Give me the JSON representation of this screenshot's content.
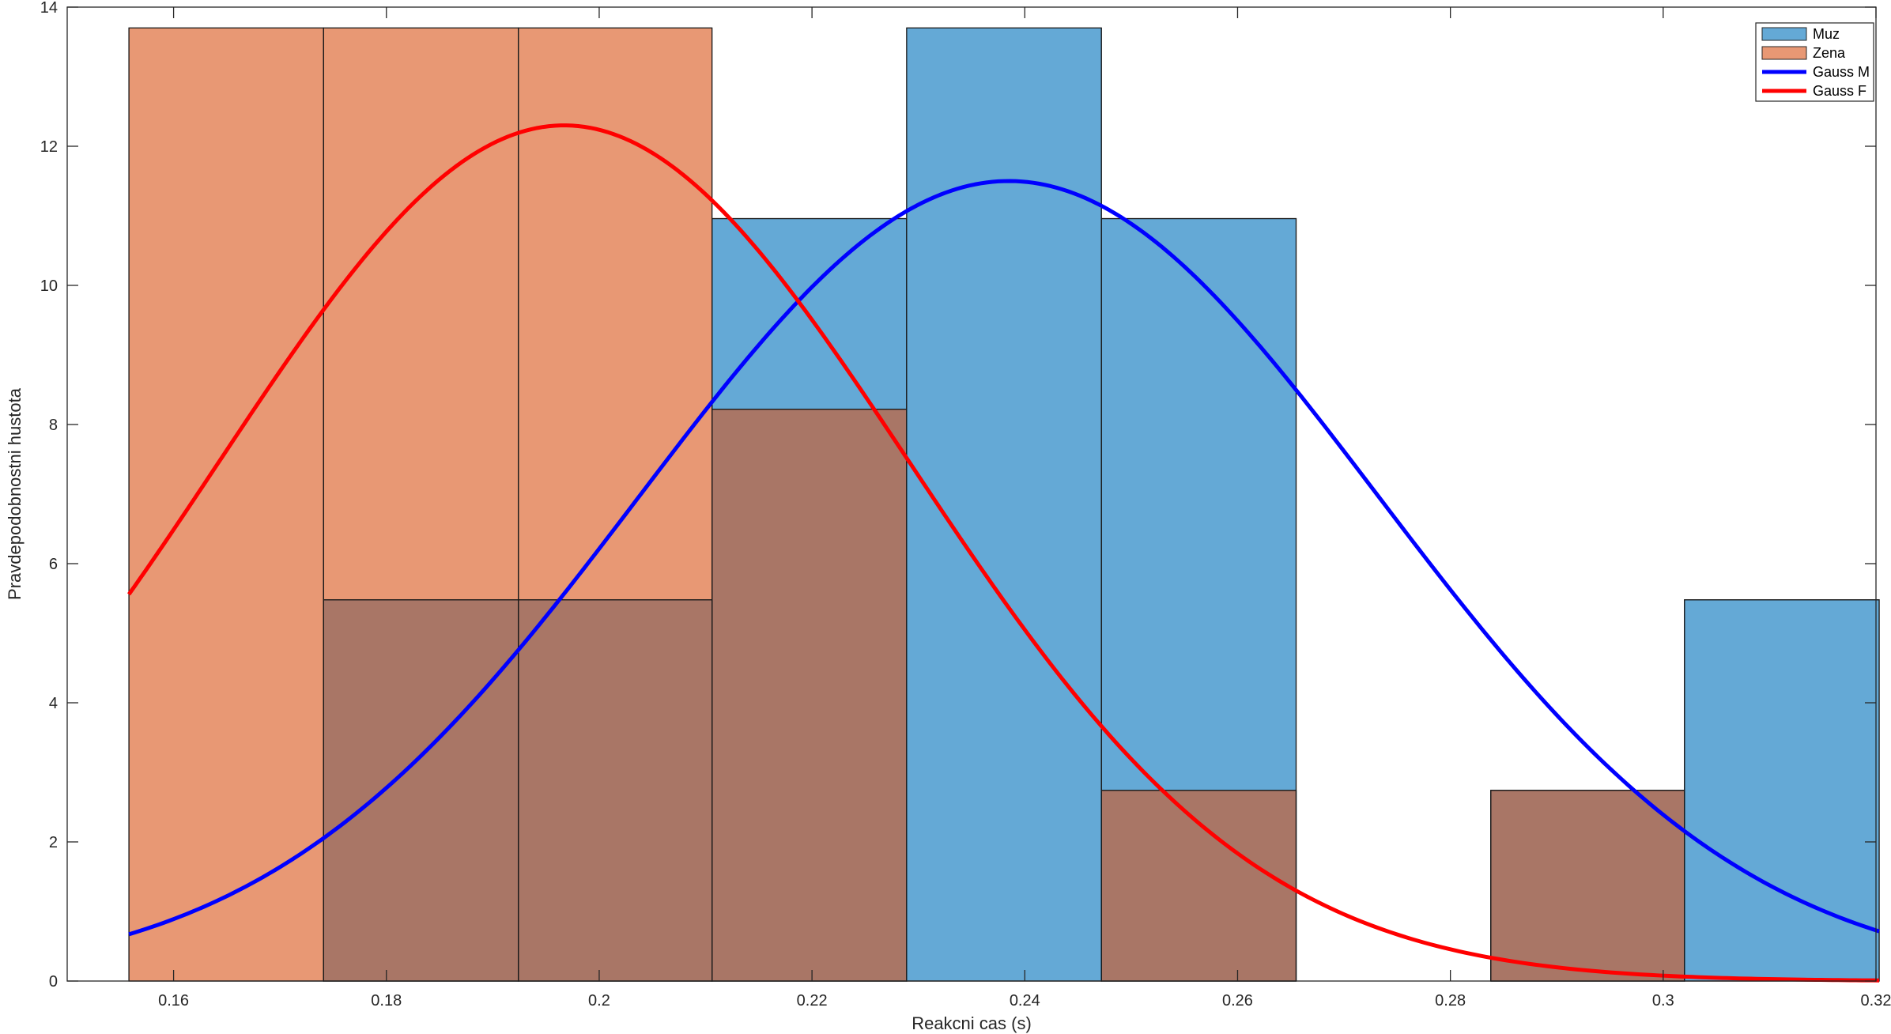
{
  "chart_data": {
    "type": "bar",
    "xlabel": "Reakcni cas (s)",
    "ylabel": "Pravdepodobnostni hustota",
    "xlim": [
      0.15,
      0.32
    ],
    "ylim": [
      0,
      14
    ],
    "x_ticks": [
      0.16,
      0.18,
      0.2,
      0.22,
      0.24,
      0.26,
      0.28,
      0.3,
      0.32
    ],
    "x_tick_labels": [
      "0.16",
      "0.18",
      "0.2",
      "0.22",
      "0.24",
      "0.26",
      "0.28",
      "0.3",
      "0.32"
    ],
    "y_ticks": [
      0,
      2,
      4,
      6,
      8,
      10,
      12,
      14
    ],
    "y_tick_labels": [
      "0",
      "2",
      "4",
      "6",
      "8",
      "10",
      "12",
      "14"
    ],
    "bin_edges": [
      0.1558,
      0.1741,
      0.1924,
      0.2106,
      0.2289,
      0.2472,
      0.2655,
      0.2838,
      0.302,
      0.3203
    ],
    "histograms": [
      {
        "name": "Muz",
        "color": "#0072BD",
        "face_color": "#64A9D6",
        "values": [
          0,
          5.48,
          5.48,
          10.96,
          13.7,
          10.96,
          0,
          2.74,
          5.48
        ]
      },
      {
        "name": "Zena",
        "color": "#D95319",
        "face_color": "#E89874",
        "values": [
          13.7,
          13.7,
          13.7,
          8.22,
          0,
          2.74,
          0,
          2.74,
          0
        ]
      }
    ],
    "overlap_color": "#A97666",
    "curves": [
      {
        "name": "Gauss M",
        "color": "#0000FF",
        "mean": 0.2385,
        "sigma": 0.0347,
        "peak": 11.5
      },
      {
        "name": "Gauss F",
        "color": "#FF0000",
        "mean": 0.1967,
        "sigma": 0.03245,
        "peak": 12.3
      }
    ],
    "legend": {
      "position": "top-right",
      "entries": [
        {
          "label": "Muz",
          "kind": "patch",
          "color": "#64A9D6"
        },
        {
          "label": "Zena",
          "kind": "patch",
          "color": "#E89874"
        },
        {
          "label": "Gauss M",
          "kind": "line",
          "color": "#0000FF"
        },
        {
          "label": "Gauss F",
          "kind": "line",
          "color": "#FF0000"
        }
      ]
    },
    "grid": false
  }
}
